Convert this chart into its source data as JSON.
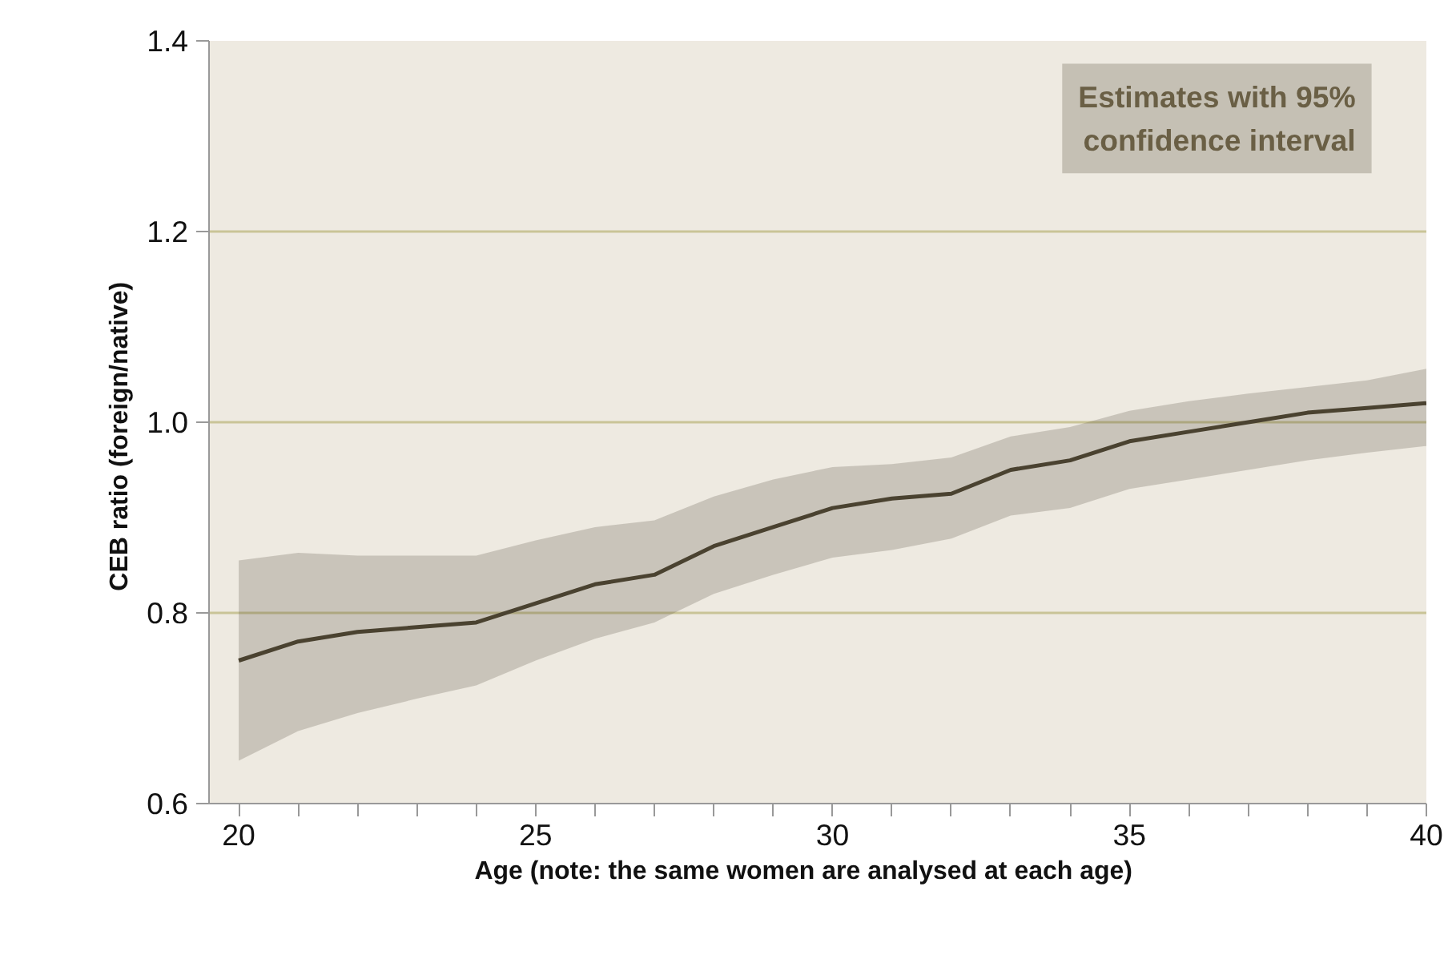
{
  "chart_data": {
    "type": "line",
    "xlabel": "Age     (note: the same women are analysed at each age)",
    "ylabel": "CEB ratio     (foreign/native)",
    "x": [
      20,
      21,
      22,
      23,
      24,
      25,
      26,
      27,
      28,
      29,
      30,
      31,
      32,
      33,
      34,
      35,
      36,
      37,
      38,
      39,
      40
    ],
    "series": [
      {
        "color": "#4a4230",
        "values": [
          0.75,
          0.77,
          0.78,
          0.785,
          0.79,
          0.81,
          0.83,
          0.84,
          0.87,
          0.89,
          0.91,
          0.92,
          0.925,
          0.95,
          0.96,
          0.98,
          0.99,
          1.0,
          1.01,
          1.015,
          1.02
        ],
        "upper": [
          0.855,
          0.863,
          0.86,
          0.86,
          0.86,
          0.876,
          0.89,
          0.897,
          0.922,
          0.94,
          0.953,
          0.956,
          0.963,
          0.985,
          0.995,
          1.012,
          1.022,
          1.03,
          1.037,
          1.044,
          1.056
        ],
        "lower": [
          0.645,
          0.676,
          0.695,
          0.71,
          0.724,
          0.75,
          0.773,
          0.79,
          0.82,
          0.84,
          0.858,
          0.866,
          0.878,
          0.902,
          0.91,
          0.93,
          0.94,
          0.95,
          0.96,
          0.968,
          0.975
        ]
      }
    ],
    "xlim": [
      19.5,
      40
    ],
    "ylim": [
      0.6,
      1.4
    ],
    "xticks": [
      20,
      {
        "value": 21,
        "label": null
      },
      {
        "value": 22,
        "label": null
      },
      {
        "value": 23,
        "label": null
      },
      {
        "value": 24,
        "label": null
      },
      25,
      {
        "value": 26,
        "label": null
      },
      {
        "value": 27,
        "label": null
      },
      {
        "value": 28,
        "label": null
      },
      {
        "value": 29,
        "label": null
      },
      30,
      {
        "value": 31,
        "label": null
      },
      {
        "value": 32,
        "label": null
      },
      {
        "value": 33,
        "label": null
      },
      {
        "value": 34,
        "label": null
      },
      35,
      {
        "value": 36,
        "label": null
      },
      {
        "value": 37,
        "label": null
      },
      {
        "value": 38,
        "label": null
      },
      {
        "value": 39,
        "label": null
      },
      40
    ],
    "yticks": [
      {
        "value": 0.6,
        "label": "0.6"
      },
      {
        "value": 0.8,
        "label": "0.8"
      },
      {
        "value": 1.0,
        "label": "1.0"
      },
      {
        "value": 1.2,
        "label": "1.2"
      },
      {
        "value": 1.4,
        "label": "1.4"
      }
    ],
    "grid": "y",
    "annotations": [
      "Estimates with 95%\nconfidence interval"
    ]
  }
}
